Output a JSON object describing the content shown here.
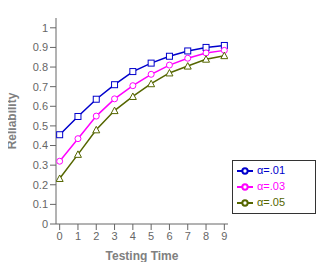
{
  "chart_data": {
    "type": "line",
    "xlabel": "Testing Time",
    "ylabel": "Reliability",
    "x": [
      0,
      1,
      2,
      3,
      4,
      5,
      6,
      7,
      8,
      9
    ],
    "xlim": [
      -0.2,
      9.2
    ],
    "ylim": [
      0,
      1.05
    ],
    "xticks": [
      0,
      1,
      2,
      3,
      4,
      5,
      6,
      7,
      8,
      9
    ],
    "yticks": [
      0,
      0.1,
      0.2,
      0.3,
      0.4,
      0.5,
      0.6,
      0.7,
      0.8,
      0.9,
      1
    ],
    "grid": false,
    "legend": "lower right",
    "series": [
      {
        "name": "α=.01",
        "color": "#0000cc",
        "marker": "square",
        "values": [
          0.455,
          0.548,
          0.636,
          0.71,
          0.777,
          0.82,
          0.855,
          0.882,
          0.9,
          0.91
        ]
      },
      {
        "name": "α=.03",
        "color": "#ff00ff",
        "marker": "circle",
        "values": [
          0.32,
          0.435,
          0.55,
          0.638,
          0.705,
          0.763,
          0.81,
          0.845,
          0.872,
          0.885
        ]
      },
      {
        "name": "α=.05",
        "color": "#556600",
        "marker": "triangle",
        "values": [
          0.232,
          0.355,
          0.48,
          0.578,
          0.65,
          0.715,
          0.77,
          0.805,
          0.84,
          0.858
        ]
      }
    ]
  }
}
